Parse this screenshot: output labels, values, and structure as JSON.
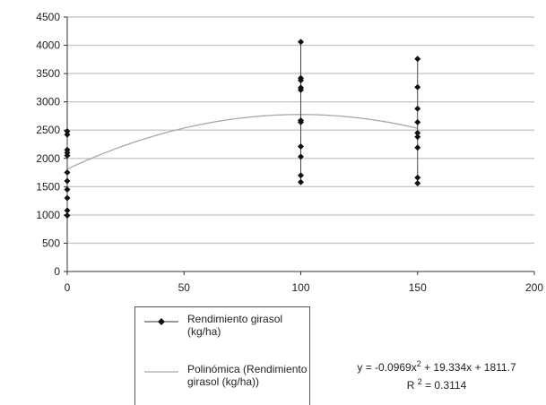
{
  "chart_data": {
    "type": "scatter",
    "xlim": [
      0,
      200
    ],
    "ylim": [
      0,
      4500
    ],
    "x_ticks": [
      "0",
      "50",
      "100",
      "150",
      "200"
    ],
    "y_ticks": [
      "0",
      "500",
      "1000",
      "1500",
      "2000",
      "2500",
      "3000",
      "3500",
      "4000",
      "4500"
    ],
    "grid": "horizontal",
    "legend_position": "bottom-left",
    "series": [
      {
        "name": "Rendimiento girasol (kg/ha)",
        "color": "#111111",
        "points": [
          [
            0,
            2480
          ],
          [
            0,
            2420
          ],
          [
            0,
            2150
          ],
          [
            0,
            2100
          ],
          [
            0,
            2050
          ],
          [
            0,
            1750
          ],
          [
            0,
            1600
          ],
          [
            0,
            1450
          ],
          [
            0,
            1300
          ],
          [
            0,
            1080
          ],
          [
            0,
            990
          ],
          [
            100,
            4060
          ],
          [
            100,
            3420
          ],
          [
            100,
            3380
          ],
          [
            100,
            3250
          ],
          [
            100,
            3210
          ],
          [
            100,
            2670
          ],
          [
            100,
            2640
          ],
          [
            100,
            2210
          ],
          [
            100,
            2030
          ],
          [
            100,
            1700
          ],
          [
            100,
            1580
          ],
          [
            150,
            3760
          ],
          [
            150,
            3260
          ],
          [
            150,
            2880
          ],
          [
            150,
            2640
          ],
          [
            150,
            2450
          ],
          [
            150,
            2380
          ],
          [
            150,
            2190
          ],
          [
            150,
            1660
          ],
          [
            150,
            1560
          ]
        ]
      },
      {
        "name": "Polinómica (Rendimiento girasol (kg/ha))",
        "color": "#a8a8a8",
        "type": "trendline",
        "coefficients": [
          -0.0969,
          19.334,
          1811.7
        ],
        "x_range": [
          0,
          150
        ]
      }
    ],
    "annotations": {
      "equation_prefix": "y = -0.0969x",
      "equation_exp": "2",
      "equation_suffix": " + 19.334x + 1811.7",
      "r2_prefix": "R ",
      "r2_exp": "2",
      "r2_suffix": " = 0.3114"
    }
  }
}
